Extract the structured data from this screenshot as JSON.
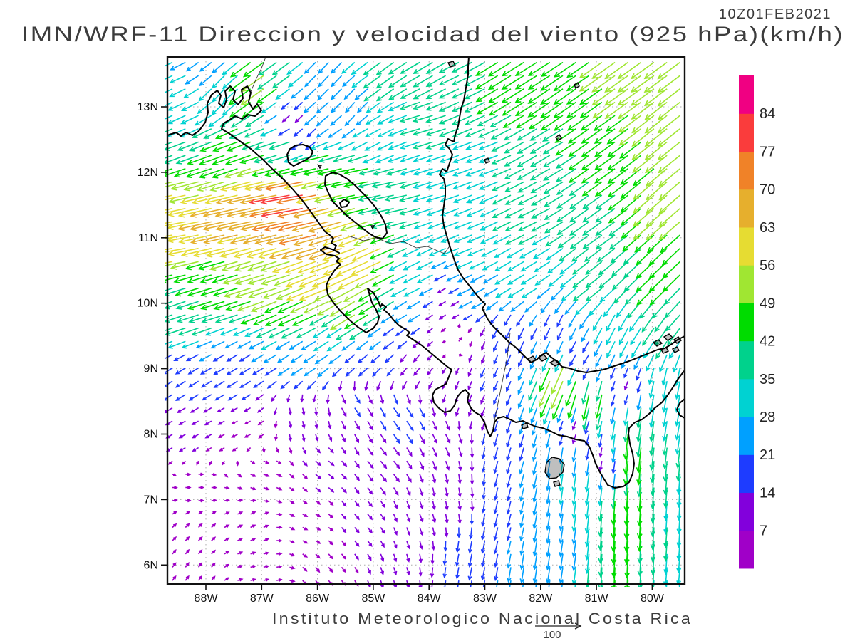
{
  "header": {
    "run_label": "10Z01FEB2021",
    "title": "IMN/WRF-11 Direccion y velocidad del viento (925 hPa)(km/h)"
  },
  "footer": {
    "credit": "Instituto Meteorologico Nacional Costa Rica",
    "reference_label": "100"
  },
  "axes": {
    "lat_labels": [
      "13N",
      "12N",
      "11N",
      "10N",
      "9N",
      "8N",
      "7N",
      "6N"
    ],
    "lat_values": [
      13,
      12,
      11,
      10,
      9,
      8,
      7,
      6
    ],
    "lon_labels": [
      "88W",
      "87W",
      "86W",
      "85W",
      "84W",
      "83W",
      "82W",
      "81W",
      "80W"
    ],
    "lon_values": [
      88,
      87,
      86,
      85,
      84,
      83,
      82,
      81,
      80
    ]
  },
  "colorbar": {
    "units": "km/h",
    "tick_labels": [
      "84",
      "77",
      "70",
      "63",
      "56",
      "49",
      "42",
      "35",
      "28",
      "21",
      "14",
      "7"
    ],
    "levels": [
      7,
      14,
      21,
      28,
      35,
      42,
      49,
      56,
      63,
      70,
      77,
      84
    ],
    "colors_bottom_to_top": [
      "#A000C8",
      "#8200DC",
      "#1E3CFF",
      "#00A0FF",
      "#00D2D2",
      "#00D28C",
      "#00DC00",
      "#A0E632",
      "#E6DC32",
      "#E6AF2D",
      "#F08228",
      "#FA3C3C",
      "#F00082"
    ]
  },
  "chart_data": {
    "type": "vector_field",
    "variable": "wind direction and speed",
    "model": "IMN/WRF-11",
    "level_hPa": 925,
    "units": "km/h",
    "valid_time": "10Z01FEB2021",
    "lon_west": 88.69,
    "lon_east": 79.43,
    "lat_south": 5.71,
    "lat_north": 13.76,
    "grid_cols": 40,
    "grid_rows": 40,
    "reference_speed": 100,
    "control_points": [
      [
        88.5,
        11.0,
        -58,
        -10
      ],
      [
        88.5,
        11.6,
        -55,
        -12
      ],
      [
        87.6,
        11.3,
        -64,
        -14
      ],
      [
        86.9,
        11.5,
        -68,
        -14
      ],
      [
        86.3,
        11.6,
        -80,
        -14
      ],
      [
        86.0,
        11.2,
        -70,
        -16
      ],
      [
        85.6,
        10.9,
        -62,
        -20
      ],
      [
        85.1,
        10.6,
        -58,
        -26
      ],
      [
        85.9,
        10.4,
        -55,
        -22
      ],
      [
        86.8,
        10.5,
        -52,
        -16
      ],
      [
        87.8,
        10.2,
        -42,
        -13
      ],
      [
        88.5,
        9.9,
        -36,
        -12
      ],
      [
        86.3,
        9.9,
        -44,
        -20
      ],
      [
        85.3,
        9.9,
        -46,
        -28
      ],
      [
        88.5,
        12.3,
        -38,
        -14
      ],
      [
        87.5,
        12.2,
        -45,
        -16
      ],
      [
        86.6,
        12.3,
        -40,
        -12
      ],
      [
        85.9,
        12.2,
        -46,
        -10
      ],
      [
        85.2,
        11.9,
        -42,
        -8
      ],
      [
        84.6,
        11.6,
        -38,
        -8
      ],
      [
        86.4,
        12.9,
        -8,
        -8
      ],
      [
        86.1,
        12.55,
        -10,
        -12
      ],
      [
        87.0,
        13.35,
        -42,
        -30
      ],
      [
        87.7,
        13.3,
        -20,
        -22
      ],
      [
        88.4,
        13.5,
        -26,
        -12
      ],
      [
        88.3,
        12.9,
        -30,
        -14
      ],
      [
        85.8,
        13.5,
        -16,
        -18
      ],
      [
        85.3,
        13.0,
        -14,
        -16
      ],
      [
        84.8,
        13.5,
        -30,
        -22
      ],
      [
        85.9,
        13.0,
        -20,
        -18
      ],
      [
        84.9,
        12.6,
        -26,
        -14
      ],
      [
        83.9,
        13.6,
        -34,
        -20
      ],
      [
        82.0,
        13.65,
        -38,
        -24
      ],
      [
        86.6,
        13.65,
        -30,
        -22
      ],
      [
        88.0,
        13.65,
        -18,
        -14
      ],
      [
        84.0,
        12.8,
        -34,
        -10
      ],
      [
        83.3,
        13.3,
        -34,
        -16
      ],
      [
        82.5,
        13.5,
        -40,
        -25
      ],
      [
        81.5,
        13.2,
        -40,
        -28
      ],
      [
        80.3,
        13.4,
        -42,
        -30
      ],
      [
        79.7,
        12.7,
        -40,
        -32
      ],
      [
        80.8,
        12.4,
        -36,
        -26
      ],
      [
        81.9,
        12.4,
        -34,
        -20
      ],
      [
        83.0,
        12.2,
        -32,
        -12
      ],
      [
        83.9,
        11.9,
        -33,
        -10
      ],
      [
        79.7,
        11.5,
        -38,
        -33
      ],
      [
        80.9,
        11.3,
        -34,
        -24
      ],
      [
        82.2,
        11.3,
        -32,
        -16
      ],
      [
        83.3,
        11.0,
        -30,
        -12
      ],
      [
        79.8,
        10.4,
        -32,
        -30
      ],
      [
        81.0,
        10.4,
        -28,
        -22
      ],
      [
        82.3,
        10.4,
        -27,
        -16
      ],
      [
        83.2,
        10.2,
        -24,
        -12
      ],
      [
        83.6,
        10.05,
        -8,
        -5
      ],
      [
        79.8,
        9.7,
        -20,
        -30
      ],
      [
        80.7,
        9.6,
        -14,
        -28
      ],
      [
        81.7,
        9.6,
        -8,
        -18
      ],
      [
        82.5,
        9.5,
        -8,
        -18
      ],
      [
        83.5,
        9.45,
        3,
        4
      ],
      [
        83.0,
        9.3,
        -4,
        -12
      ],
      [
        79.5,
        10.0,
        -26,
        -28
      ],
      [
        81.55,
        8.85,
        -22,
        -52
      ],
      [
        81.1,
        8.6,
        -10,
        -48
      ],
      [
        80.45,
        7.8,
        -5,
        -50
      ],
      [
        80.5,
        6.8,
        -3,
        -45
      ],
      [
        80.5,
        6.0,
        -2,
        -43
      ],
      [
        80.3,
        7.0,
        -3,
        -46
      ],
      [
        80.2,
        8.3,
        -5,
        -36
      ],
      [
        79.9,
        7.2,
        -3,
        -36
      ],
      [
        79.9,
        6.1,
        -2,
        -36
      ],
      [
        79.6,
        8.8,
        -6,
        -30
      ],
      [
        79.6,
        7.0,
        -2,
        -33
      ],
      [
        81.6,
        7.6,
        -4,
        -28
      ],
      [
        81.15,
        7.3,
        -4,
        -30
      ],
      [
        81.7,
        6.4,
        -4,
        -26
      ],
      [
        82.3,
        7.8,
        -6,
        -20
      ],
      [
        82.6,
        6.7,
        -5,
        -20
      ],
      [
        83.2,
        6.0,
        -4,
        -20
      ],
      [
        82.1,
        5.85,
        -4,
        -26
      ],
      [
        81.2,
        9.15,
        -8,
        -12
      ],
      [
        80.5,
        8.75,
        -4,
        -10
      ],
      [
        80.8,
        7.7,
        -2,
        -9
      ],
      [
        81.4,
        8.15,
        -4,
        -10
      ],
      [
        79.6,
        5.9,
        -3,
        -30
      ],
      [
        84.3,
        9.1,
        -8,
        -10
      ],
      [
        85.2,
        9.2,
        -14,
        -12
      ],
      [
        86.3,
        9.2,
        -18,
        -12
      ],
      [
        87.4,
        9.0,
        -16,
        -10
      ],
      [
        88.4,
        8.8,
        -14,
        -9
      ],
      [
        88.3,
        8.0,
        -7,
        -4
      ],
      [
        87.3,
        8.1,
        -6,
        -3
      ],
      [
        86.3,
        8.3,
        2,
        -8
      ],
      [
        85.3,
        8.5,
        8,
        -12
      ],
      [
        84.5,
        8.3,
        10,
        -14
      ],
      [
        83.8,
        8.0,
        6,
        -12
      ],
      [
        84.8,
        7.6,
        8,
        -10
      ],
      [
        85.9,
        7.5,
        6,
        -5
      ],
      [
        87.0,
        7.4,
        5,
        -2
      ],
      [
        88.2,
        7.2,
        4,
        0
      ],
      [
        88.2,
        6.5,
        3,
        3
      ],
      [
        87.2,
        6.6,
        4,
        2
      ],
      [
        86.2,
        6.6,
        4,
        -2
      ],
      [
        85.2,
        6.7,
        5,
        -6
      ],
      [
        84.3,
        6.8,
        4,
        -10
      ],
      [
        83.6,
        7.0,
        2,
        -12
      ],
      [
        88.3,
        5.85,
        3,
        4
      ],
      [
        87.0,
        5.8,
        4,
        1
      ],
      [
        85.8,
        5.85,
        4,
        -5
      ],
      [
        84.6,
        5.8,
        3,
        -9
      ],
      [
        83.6,
        5.75,
        -2,
        -14
      ],
      [
        84.6,
        9.6,
        -16,
        -12
      ],
      [
        85.6,
        9.55,
        -24,
        -16
      ],
      [
        84.9,
        10.15,
        -40,
        -24
      ],
      [
        84.3,
        9.9,
        -20,
        -12
      ],
      [
        83.9,
        9.6,
        -6,
        -6
      ],
      [
        84.15,
        10.4,
        -28,
        -14
      ],
      [
        82.9,
        8.9,
        -6,
        -14
      ],
      [
        83.4,
        8.6,
        -4,
        -10
      ]
    ]
  },
  "map": {
    "coast_color": "#000000",
    "grid_color": "#ababab",
    "coastline_paths": [
      "M 235 190 L 247 186 254 191 261 186 270 190 279 184 288 172 292 158 291 145 297 133 305 127 310 134 307 145 314 151 318 140 316 128 323 121 330 128 327 140 334 147 341 138 339 126 347 121 352 130 349 143 355 153 361 146 367 155 358 163 348 161 340 167 330 163 321 169 314 173 311 181 321 187 335 197 352 209 368 223 384 239 399 253 412 267 424 281 436 297 446 311 456 325 464 331 468 335 465 341 472 345 469 351 476 355 466 350 456 347 450 351 458 357 470 359 476 363 472 367 478 371 470 379 462 391 458 401 460 413 468 425 478 437 490 449 502 459 514 467 524 461 530 453 532 445 528 435 522 425 518 411 516 405 524 411 530 421 534 431 536 427 542 431 539 435 546 441 552 449 560 457 570 463 575 467 571 471 580 477 592 485 604 495 616 505 628 515 634 519 630 529 626 539 619 543 611 547 607 555 609 565 616 573 624 579 632 577 638 569 642 557 647 551 653 547 658 553 656 563 661 573 667 579 674 583 680 593 684 605 688 613 692 605 694 593 699 587 707 585 716 589 724 593 734 591 742 595 752 599 762 601 772 605 784 611 796 613 808 617 820 619 827 627 832 639 836 651 842 663 848 673 853 681 863 685 875 683 883 677 888 665 890 651 888 637 884 623 882 609 883 601 891 593 901 589 911 581 919 573 929 565 937 555 945 543 951 533 957 525 961 520",
      "M 961 472 L 951 477 943 483 933 489 923 491 913 495 903 499 893 503 883 507 871 511 859 515 847 519 835 521 823 523 811 521 799 517 789 515 781 507 773 501 767 495 759 499 753 505 745 509 737 501 729 493 723 487 715 481 707 473 699 465 691 457 685 449 681 441 677 433 681 427 673 419 665 409 657 399 649 389 643 379 639 369 635 357 631 345 627 331 623 317 621 303 623 289 625 275 625 261 623 251 617 245 621 237 627 241 631 229 635 217 631 209 625 203 629 195 637 199 639 189 643 177 645 165 647 153 651 141 653 129 655 117 657 105 657 93 658 80",
      "M 961 560 L 954 566 950 575 954 583 961 587",
      "M 403 217 L 407 209 415 204 425 203 434 206 439 213 436 220 428 225 420 229 412 233 405 228 Z",
      "M 457 247 L 467 242 477 245 487 251 497 259 507 269 517 279 527 291 535 303 541 315 543 327 537 335 527 333 517 327 507 319 497 311 487 303 477 293 467 283 461 271 456 259 Z",
      "M 477 285 L 483 280 490 284 486 290 479 291 Z"
    ],
    "border_paths": [
      "M 489 331 L 510 338 528 334 548 342 566 339 584 348 600 346 614 352 624 356 632 344",
      "M 692 601 L 696 581 700 561 704 541 708 521 712 501 714 483 716 467",
      "M 352 129 L 359 112 367 96 373 80"
    ],
    "island_paths": [
      "M 772 509 L 780 505 786 510 779 514 Z",
      "M 756 502 L 763 498 768 503 761 507 Z",
      "M 741 504 L 748 500 752 505 746 509 Z",
      "M 767 649 L 775 642 785 644 792 652 790 663 781 671 771 672 765 663 Z",
      "M 777 677 L 784 675 786 681 779 683 Z",
      "M 732 597 L 739 594 741 600 734 602 Z",
      "M 917 481 L 924 477 929 482 922 486 Z",
      "M 932 473 L 939 469 944 474 937 478 Z",
      "M 946 477 L 952 473 956 478 950 482 Z",
      "M 928 491 L 935 488 938 493 931 496 Z",
      "M 944 490 L 950 487 953 492 947 495 Z",
      "M 680 224 L 685 222 687 227 682 229 Z",
      "M 780 193 L 785 189 788 194 783 197 Z",
      "M 806 119 L 811 116 813 121 808 124 Z",
      "M 629 88 L 636 86 639 92 632 94 Z",
      "M 447 232 L 451 232 449 236 Z",
      "M 521 317 L 525 317 523 321 Z"
    ]
  }
}
